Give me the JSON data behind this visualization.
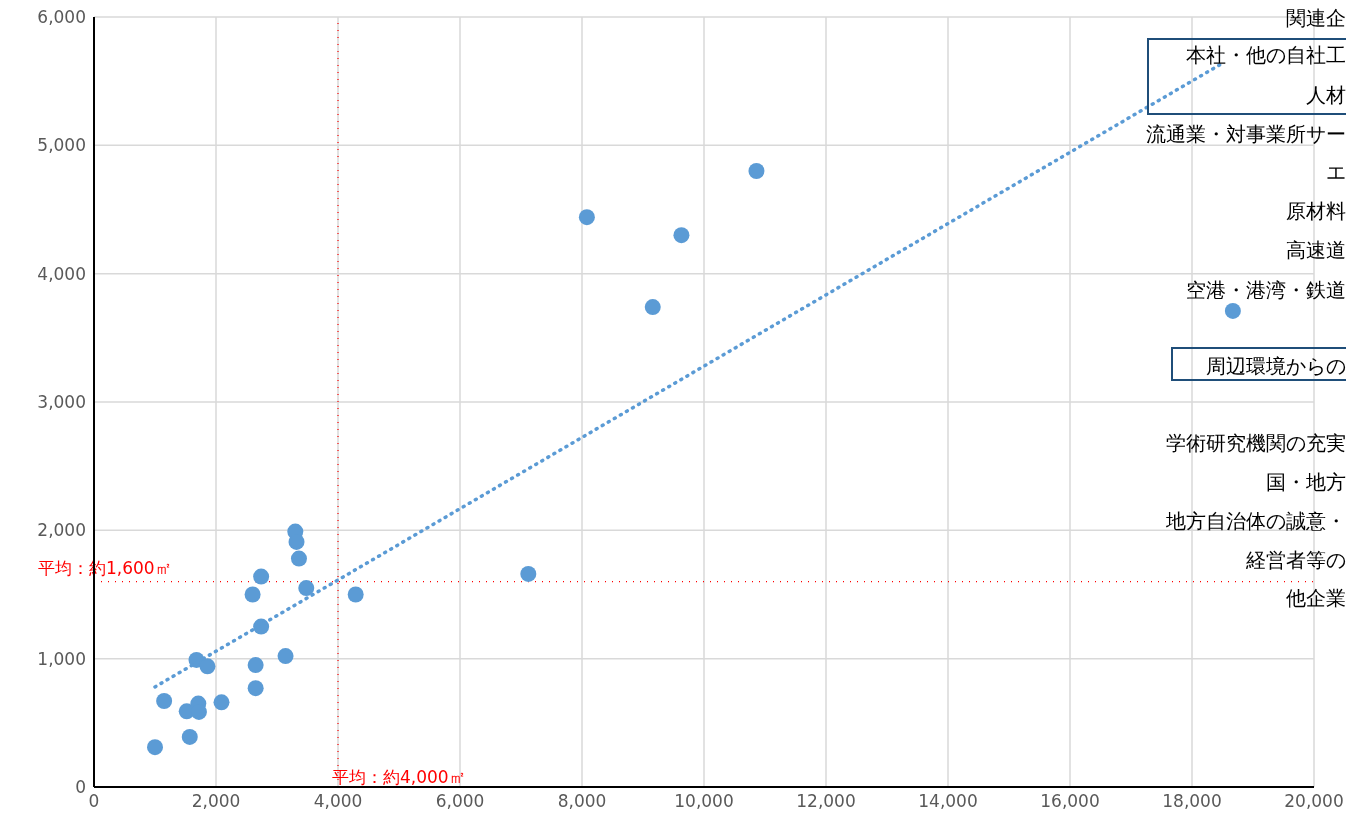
{
  "chart_data": {
    "type": "scatter",
    "xlim": [
      0,
      20000
    ],
    "ylim": [
      0,
      6000
    ],
    "xticks": [
      {
        "value": 0,
        "label": "0"
      },
      {
        "value": 2000,
        "label": "2,000"
      },
      {
        "value": 4000,
        "label": "4,000"
      },
      {
        "value": 6000,
        "label": "6,000"
      },
      {
        "value": 8000,
        "label": "8,000"
      },
      {
        "value": 10000,
        "label": "10,000"
      },
      {
        "value": 12000,
        "label": "12,000"
      },
      {
        "value": 14000,
        "label": "14,000"
      },
      {
        "value": 16000,
        "label": "16,000"
      },
      {
        "value": 18000,
        "label": "18,000"
      },
      {
        "value": 20000,
        "label": "20,000"
      }
    ],
    "yticks": [
      {
        "value": 0,
        "label": "0"
      },
      {
        "value": 1000,
        "label": "1,000"
      },
      {
        "value": 2000,
        "label": "2,000"
      },
      {
        "value": 3000,
        "label": "3,000"
      },
      {
        "value": 4000,
        "label": "4,000"
      },
      {
        "value": 5000,
        "label": "5,000"
      },
      {
        "value": 6000,
        "label": "6,000"
      }
    ],
    "grid": true,
    "legend": false,
    "marker": "circle",
    "series": [
      {
        "color": "#5b9bd5",
        "x": [
          1000,
          1150,
          1520,
          1570,
          1710,
          1720,
          1680,
          1860,
          2090,
          2600,
          2650,
          2650,
          2740,
          2740,
          3140,
          3300,
          3320,
          3360,
          3480,
          4290,
          7120,
          8080,
          9160,
          9630,
          10860,
          18670
        ],
        "values": [
          310,
          670,
          590,
          390,
          650,
          585,
          990,
          940,
          660,
          1500,
          950,
          770,
          1250,
          1640,
          1020,
          1990,
          1910,
          1780,
          1550,
          1500,
          1660,
          4440,
          3740,
          4300,
          4800,
          3710
        ]
      },
      {
        "type": "line",
        "color": "#5b9bd5",
        "line_style": "dotted",
        "marker": "none",
        "x": [
          1000,
          18500
        ],
        "values": [
          780,
          5640
        ]
      }
    ],
    "ref_lines": [
      {
        "axis": "y",
        "value": 1600,
        "label": "平均：約1,600㎡",
        "color": "#ff0000",
        "line_style": "dotted"
      },
      {
        "axis": "x",
        "value": 4000,
        "label": "平均：約4,000㎡",
        "color": "#ff0000",
        "line_style": "dotted"
      }
    ],
    "annotations": [
      "関連企",
      "本社・他の自社工",
      "人材",
      "流通業・対事業所サー",
      "エ",
      "原材料",
      "高速道",
      "空港・港湾・鉄道",
      "周辺環境からの",
      "学術研究機関の充実",
      "国・地方",
      "地方自治体の誠意・",
      "経営者等の",
      "他企業"
    ]
  }
}
